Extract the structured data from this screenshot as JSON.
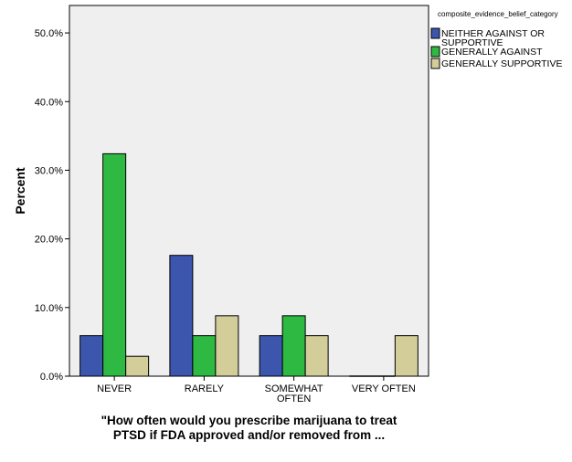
{
  "chart_data": {
    "type": "bar",
    "ylabel": "Percent",
    "xlabel_lines": [
      "\"How often would you prescribe marijuana to treat",
      "PTSD if FDA approved and/or removed from ..."
    ],
    "categories": [
      [
        "NEVER"
      ],
      [
        "RARELY"
      ],
      [
        "SOMEWHAT",
        "OFTEN"
      ],
      [
        "VERY OFTEN"
      ]
    ],
    "y_ticks": [
      {
        "value": 0,
        "label": "0.0%"
      },
      {
        "value": 10,
        "label": "10.0%"
      },
      {
        "value": 20,
        "label": "20.0%"
      },
      {
        "value": 30,
        "label": "30.0%"
      },
      {
        "value": 40,
        "label": "40.0%"
      },
      {
        "value": 50,
        "label": "50.0%"
      }
    ],
    "ylim": [
      0,
      54
    ],
    "legend_title": "composite_evidence_belief_category",
    "legend_position": "top-right",
    "series": [
      {
        "name_lines": [
          "NEITHER AGAINST OR",
          "SUPPORTIVE"
        ],
        "color": "#3c56ae",
        "values": [
          5.9,
          17.6,
          5.9,
          0
        ]
      },
      {
        "name_lines": [
          "GENERALLY AGAINST"
        ],
        "color": "#2eb942",
        "values": [
          32.4,
          5.9,
          8.8,
          0
        ]
      },
      {
        "name_lines": [
          "GENERALLY SUPPORTIVE"
        ],
        "color": "#d3cd9a",
        "values": [
          2.9,
          8.8,
          5.9,
          5.9
        ]
      }
    ],
    "grid": false,
    "plot_background": "#efefef"
  }
}
